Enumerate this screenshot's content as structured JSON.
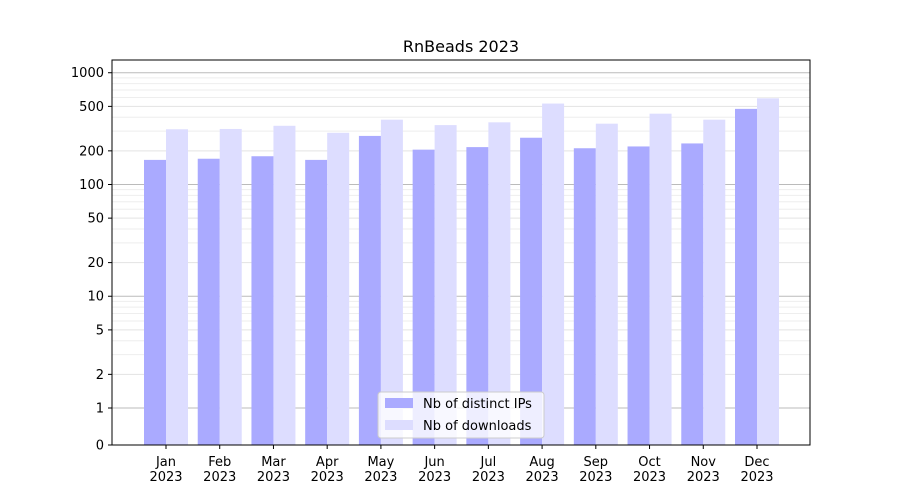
{
  "chart_data": {
    "type": "bar",
    "title": "RnBeads 2023",
    "xlabel": "",
    "ylabel": "",
    "y_scale": "symlog",
    "ylim": [
      0,
      1300
    ],
    "y_ticks": [
      0,
      1,
      2,
      5,
      10,
      20,
      50,
      100,
      200,
      500,
      1000
    ],
    "grid": true,
    "legend_position": "bottom-center",
    "categories": [
      "Jan\n2023",
      "Feb\n2023",
      "Mar\n2023",
      "Apr\n2023",
      "May\n2023",
      "Jun\n2023",
      "Jul\n2023",
      "Aug\n2023",
      "Sep\n2023",
      "Oct\n2023",
      "Nov\n2023",
      "Dec\n2023"
    ],
    "series": [
      {
        "name": "Nb of distinct IPs",
        "color": "#aaaaff",
        "values": [
          166,
          170,
          179,
          166,
          272,
          205,
          216,
          262,
          211,
          219,
          233,
          475
        ]
      },
      {
        "name": "Nb of downloads",
        "color": "#ddddff",
        "values": [
          312,
          314,
          335,
          290,
          380,
          340,
          360,
          530,
          350,
          430,
          380,
          590
        ]
      }
    ]
  }
}
